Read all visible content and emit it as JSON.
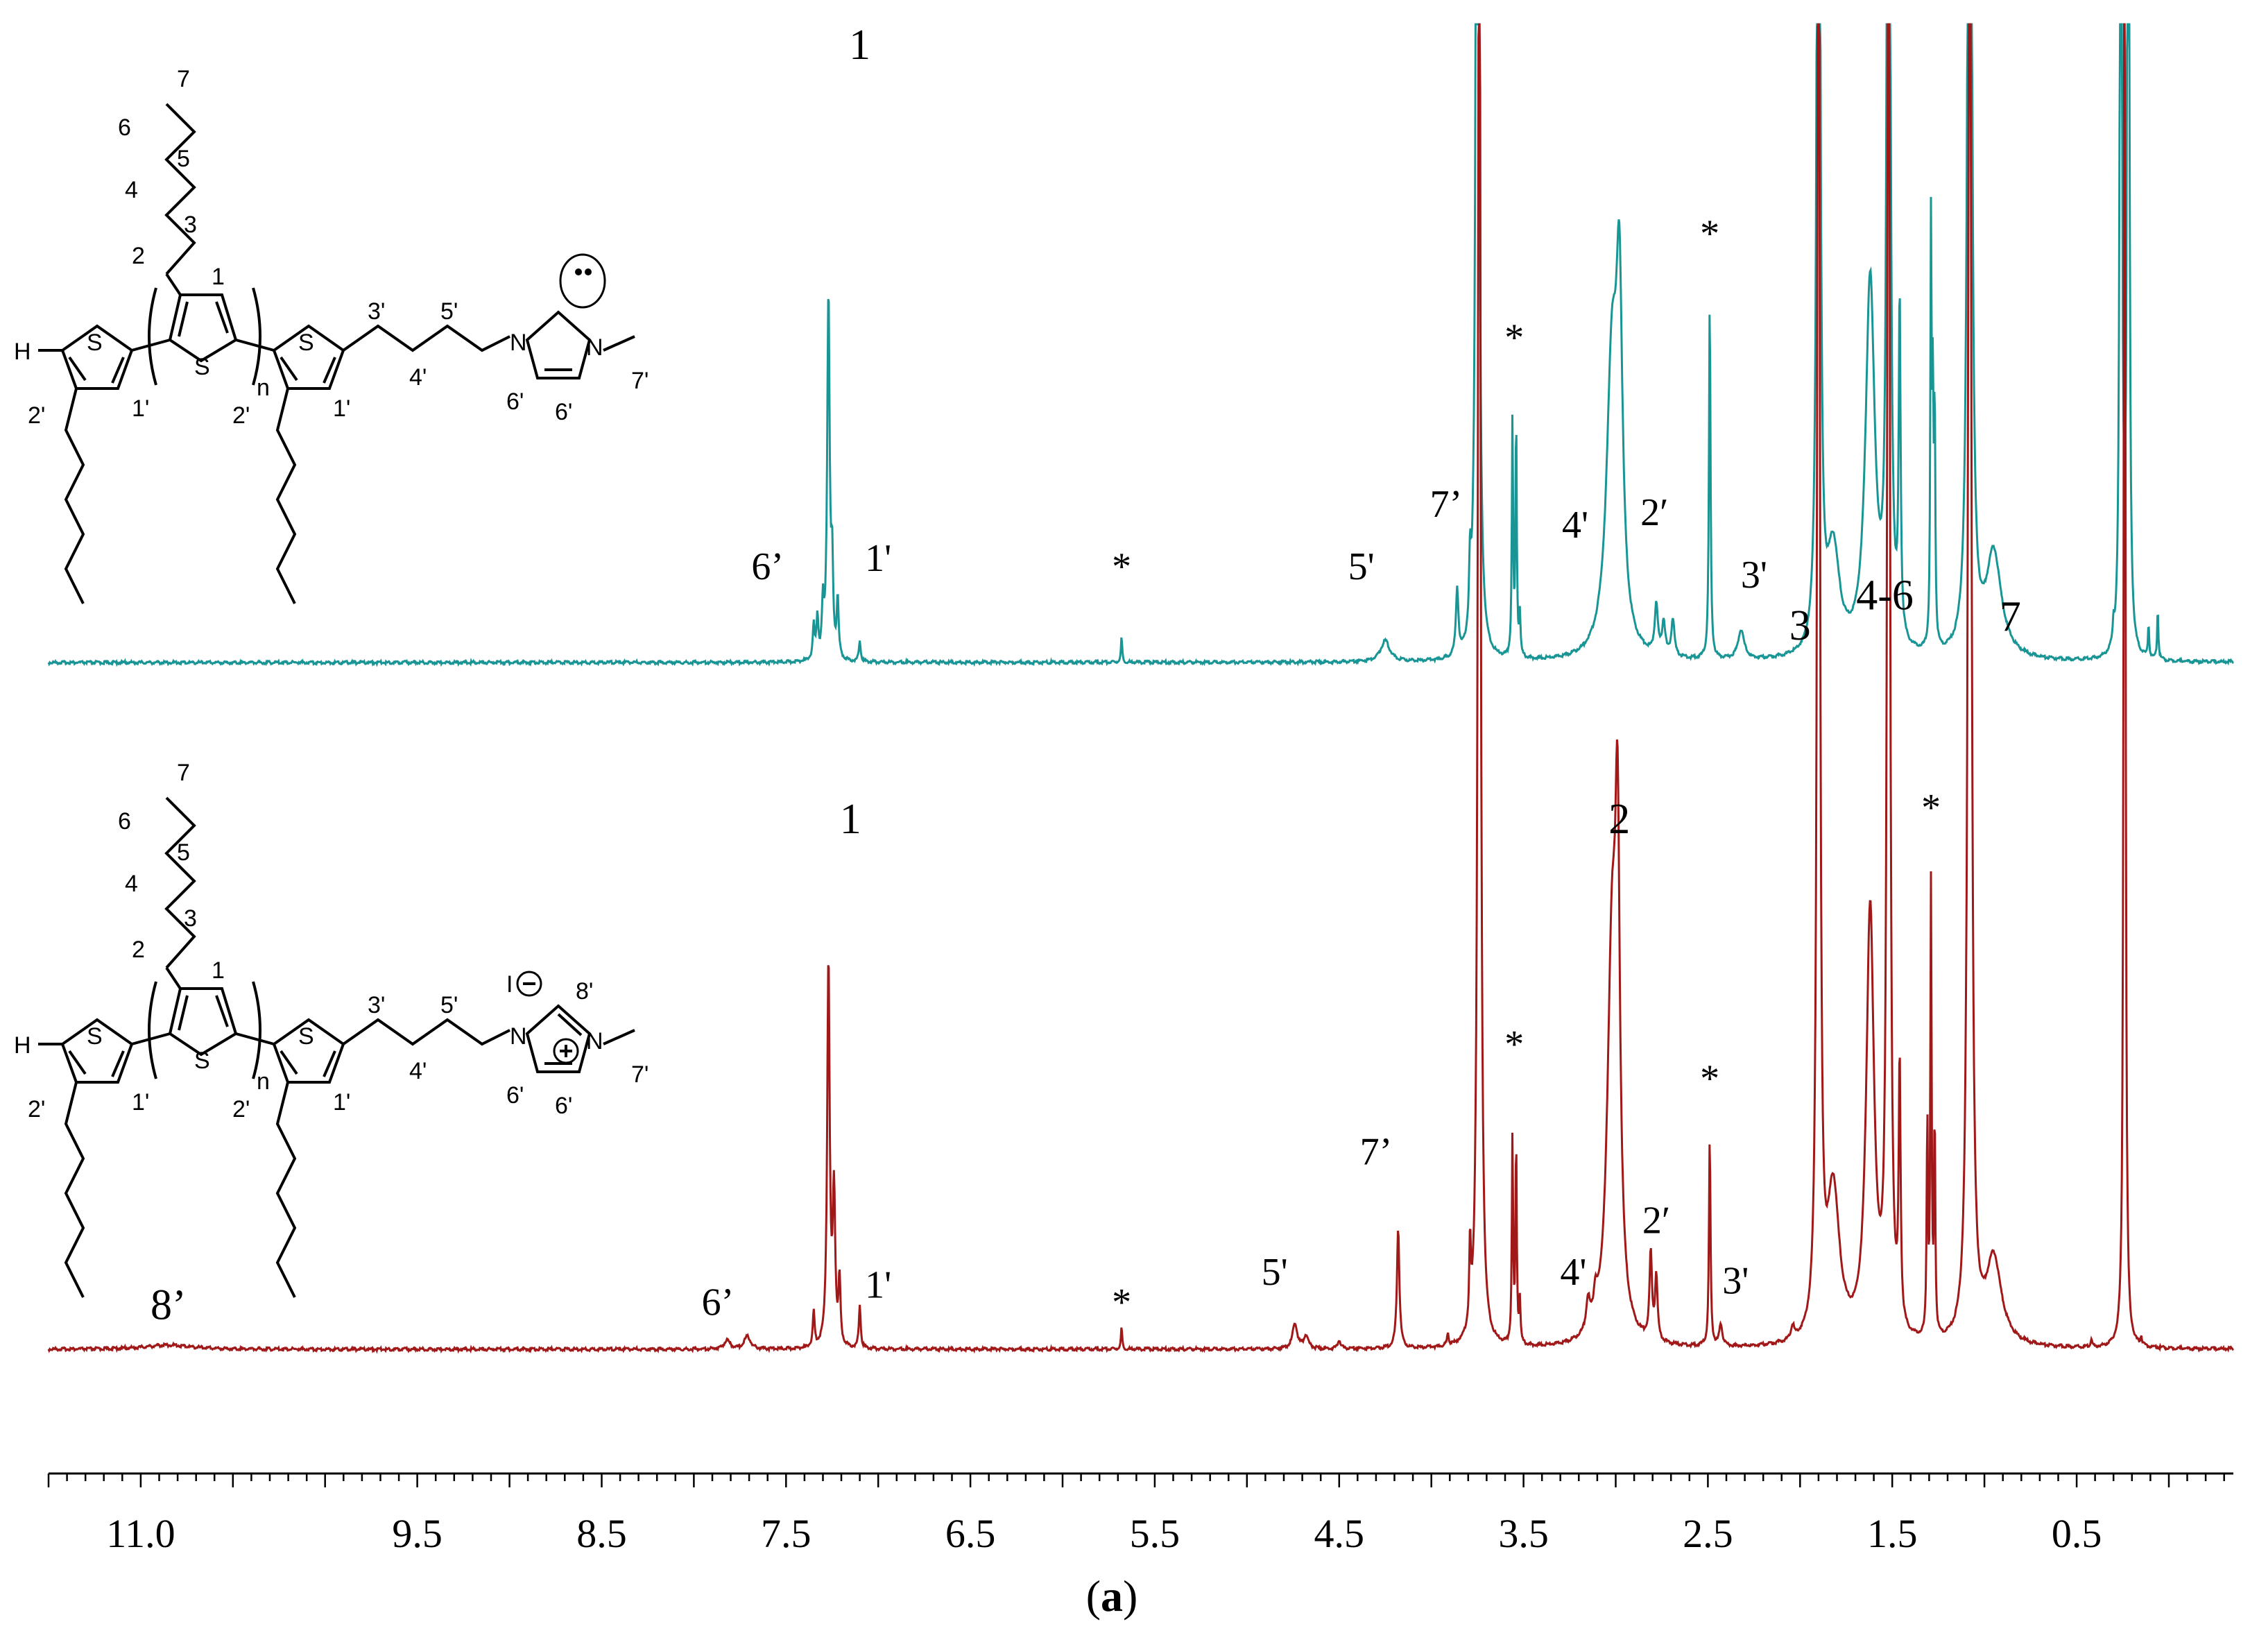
{
  "chart_data": {
    "type": "line",
    "xlim": [
      11.5,
      -0.35
    ],
    "x_reversed": true,
    "x_ticks": [
      "11.0",
      "9.5",
      "8.5",
      "7.5",
      "6.5",
      "5.5",
      "4.5",
      "3.5",
      "2.5",
      "1.5",
      "0.5"
    ],
    "x_tick_values": [
      11.0,
      9.5,
      8.5,
      7.5,
      6.5,
      5.5,
      4.5,
      3.5,
      2.5,
      1.5,
      0.5
    ],
    "caption": "(a)",
    "colors": {
      "top": "#1a9595",
      "bottom": "#a01818",
      "axis": "#000000"
    },
    "series": [
      {
        "key": "top",
        "peaks": [
          {
            "x": 7.35,
            "h": 0.08,
            "w": 0.006
          },
          {
            "x": 7.33,
            "h": 0.1,
            "w": 0.006
          },
          {
            "x": 7.3,
            "h": 0.12,
            "w": 0.006
          },
          {
            "x": 7.27,
            "h": 0.88,
            "w": 0.008
          },
          {
            "x": 7.25,
            "h": 0.2,
            "w": 0.006
          },
          {
            "x": 7.22,
            "h": 0.14,
            "w": 0.006
          },
          {
            "x": 7.1,
            "h": 0.05,
            "w": 0.006
          },
          {
            "x": 5.68,
            "h": 0.06,
            "w": 0.004
          },
          {
            "x": 4.25,
            "h": 0.05,
            "w": 0.03
          },
          {
            "x": 3.86,
            "h": 0.16,
            "w": 0.008
          },
          {
            "x": 3.79,
            "h": 0.16,
            "w": 0.006
          },
          {
            "x": 3.75,
            "h": 4.0,
            "w": 0.008
          },
          {
            "x": 3.56,
            "h": 0.57,
            "w": 0.004
          },
          {
            "x": 3.54,
            "h": 0.57,
            "w": 0.004
          },
          {
            "x": 3.52,
            "h": 0.1,
            "w": 0.004
          },
          {
            "x": 3.02,
            "h": 0.7,
            "w": 0.035
          },
          {
            "x": 2.98,
            "h": 0.75,
            "w": 0.02
          },
          {
            "x": 2.78,
            "h": 0.12,
            "w": 0.01
          },
          {
            "x": 2.74,
            "h": 0.08,
            "w": 0.01
          },
          {
            "x": 2.69,
            "h": 0.09,
            "w": 0.01
          },
          {
            "x": 2.49,
            "h": 0.85,
            "w": 0.005
          },
          {
            "x": 2.32,
            "h": 0.07,
            "w": 0.02
          },
          {
            "x": 1.9,
            "h": 4.0,
            "w": 0.008
          },
          {
            "x": 1.82,
            "h": 0.25,
            "w": 0.04
          },
          {
            "x": 1.62,
            "h": 0.9,
            "w": 0.03
          },
          {
            "x": 1.52,
            "h": 4.0,
            "w": 0.008
          },
          {
            "x": 1.46,
            "h": 0.8,
            "w": 0.006
          },
          {
            "x": 1.29,
            "h": 1.0,
            "w": 0.004
          },
          {
            "x": 1.28,
            "h": 0.55,
            "w": 0.004
          },
          {
            "x": 1.27,
            "h": 0.55,
            "w": 0.004
          },
          {
            "x": 1.08,
            "h": 4.0,
            "w": 0.01
          },
          {
            "x": 0.95,
            "h": 0.25,
            "w": 0.05
          },
          {
            "x": 0.3,
            "h": 0.05,
            "w": 0.004
          },
          {
            "x": 0.26,
            "h": 4.0,
            "w": 0.005
          },
          {
            "x": 0.22,
            "h": 4.0,
            "w": 0.005
          },
          {
            "x": 0.11,
            "h": 0.08,
            "w": 0.004
          },
          {
            "x": 0.06,
            "h": 0.12,
            "w": 0.004
          }
        ]
      },
      {
        "key": "bottom",
        "peaks": [
          {
            "x": 10.85,
            "h": 0.01,
            "w": 0.15
          },
          {
            "x": 7.82,
            "h": 0.02,
            "w": 0.02
          },
          {
            "x": 7.71,
            "h": 0.03,
            "w": 0.02
          },
          {
            "x": 7.35,
            "h": 0.08,
            "w": 0.006
          },
          {
            "x": 7.27,
            "h": 0.9,
            "w": 0.008
          },
          {
            "x": 7.24,
            "h": 0.35,
            "w": 0.008
          },
          {
            "x": 7.21,
            "h": 0.15,
            "w": 0.006
          },
          {
            "x": 7.1,
            "h": 0.1,
            "w": 0.006
          },
          {
            "x": 5.68,
            "h": 0.05,
            "w": 0.004
          },
          {
            "x": 4.74,
            "h": 0.06,
            "w": 0.015
          },
          {
            "x": 4.68,
            "h": 0.03,
            "w": 0.015
          },
          {
            "x": 4.5,
            "h": 0.02,
            "w": 0.01
          },
          {
            "x": 4.18,
            "h": 0.28,
            "w": 0.008
          },
          {
            "x": 3.91,
            "h": 0.03,
            "w": 0.005
          },
          {
            "x": 3.79,
            "h": 0.19,
            "w": 0.005
          },
          {
            "x": 3.74,
            "h": 4.0,
            "w": 0.008
          },
          {
            "x": 3.56,
            "h": 0.48,
            "w": 0.004
          },
          {
            "x": 3.54,
            "h": 0.47,
            "w": 0.004
          },
          {
            "x": 3.52,
            "h": 0.1,
            "w": 0.004
          },
          {
            "x": 3.15,
            "h": 0.07,
            "w": 0.012
          },
          {
            "x": 3.11,
            "h": 0.06,
            "w": 0.012
          },
          {
            "x": 3.02,
            "h": 0.9,
            "w": 0.03
          },
          {
            "x": 2.99,
            "h": 0.95,
            "w": 0.015
          },
          {
            "x": 2.81,
            "h": 0.2,
            "w": 0.008
          },
          {
            "x": 2.78,
            "h": 0.15,
            "w": 0.008
          },
          {
            "x": 2.49,
            "h": 0.48,
            "w": 0.005
          },
          {
            "x": 2.43,
            "h": 0.05,
            "w": 0.01
          },
          {
            "x": 2.04,
            "h": 0.03,
            "w": 0.01
          },
          {
            "x": 1.9,
            "h": 4.0,
            "w": 0.008
          },
          {
            "x": 1.82,
            "h": 0.35,
            "w": 0.04
          },
          {
            "x": 1.62,
            "h": 1.0,
            "w": 0.025
          },
          {
            "x": 1.52,
            "h": 4.0,
            "w": 0.008
          },
          {
            "x": 1.46,
            "h": 0.6,
            "w": 0.006
          },
          {
            "x": 1.31,
            "h": 0.5,
            "w": 0.004
          },
          {
            "x": 1.29,
            "h": 1.05,
            "w": 0.004
          },
          {
            "x": 1.27,
            "h": 0.5,
            "w": 0.004
          },
          {
            "x": 1.08,
            "h": 4.0,
            "w": 0.01
          },
          {
            "x": 0.95,
            "h": 0.2,
            "w": 0.05
          },
          {
            "x": 0.42,
            "h": 0.02,
            "w": 0.004
          },
          {
            "x": 0.24,
            "h": 4.0,
            "w": 0.005
          },
          {
            "x": 0.15,
            "h": 0.02,
            "w": 0.004
          }
        ]
      }
    ],
    "annotations": [
      {
        "series": "top",
        "text": "1",
        "x": 7.1,
        "y": 1.45,
        "size": 62
      },
      {
        "series": "top",
        "text": "6’",
        "x": 7.6,
        "y": 0.2,
        "size": 56
      },
      {
        "series": "top",
        "text": "1'",
        "x": 7.0,
        "y": 0.22,
        "size": 56
      },
      {
        "series": "top",
        "text": "*",
        "x": 5.68,
        "y": 0.2,
        "size": 56
      },
      {
        "series": "top",
        "text": "5'",
        "x": 4.38,
        "y": 0.2,
        "size": 56
      },
      {
        "series": "top",
        "text": "7’",
        "x": 3.92,
        "y": 0.35,
        "size": 56
      },
      {
        "series": "top",
        "text": "*",
        "x": 3.55,
        "y": 0.75,
        "size": 56
      },
      {
        "series": "top",
        "text": "4'",
        "x": 3.22,
        "y": 0.3,
        "size": 56
      },
      {
        "series": "top",
        "text": "2",
        "x": 2.98,
        "y": 1.85,
        "size": 62
      },
      {
        "series": "top",
        "text": "2′",
        "x": 2.79,
        "y": 0.33,
        "size": 56
      },
      {
        "series": "top",
        "text": "*",
        "x": 2.49,
        "y": 1.0,
        "size": 56
      },
      {
        "series": "top",
        "text": "3'",
        "x": 2.25,
        "y": 0.18,
        "size": 56
      },
      {
        "series": "top",
        "text": "3",
        "x": 2.05,
        "y": 1.65,
        "size": 62
      },
      {
        "series": "top",
        "text": "4-6",
        "x": 1.54,
        "y": 1.7,
        "size": 62
      },
      {
        "series": "top",
        "text": "*",
        "x": 1.29,
        "y": 1.85,
        "size": 56
      },
      {
        "series": "top",
        "text": "7",
        "x": 0.86,
        "y": 1.7,
        "size": 62
      },
      {
        "series": "bottom",
        "text": "8’",
        "x": 10.85,
        "y": 0.07,
        "size": 62
      },
      {
        "series": "bottom",
        "text": "6’",
        "x": 7.87,
        "y": 0.08,
        "size": 56
      },
      {
        "series": "bottom",
        "text": "1'",
        "x": 7.0,
        "y": 0.12,
        "size": 56
      },
      {
        "series": "bottom",
        "text": "1",
        "x": 7.15,
        "y": 1.2,
        "size": 62
      },
      {
        "series": "bottom",
        "text": "*",
        "x": 5.68,
        "y": 0.08,
        "size": 56
      },
      {
        "series": "bottom",
        "text": "5'",
        "x": 4.85,
        "y": 0.15,
        "size": 56
      },
      {
        "series": "bottom",
        "text": "7’",
        "x": 4.3,
        "y": 0.43,
        "size": 56
      },
      {
        "series": "bottom",
        "text": "*",
        "x": 3.55,
        "y": 0.68,
        "size": 56
      },
      {
        "series": "bottom",
        "text": "4'",
        "x": 3.23,
        "y": 0.15,
        "size": 56
      },
      {
        "series": "bottom",
        "text": "2",
        "x": 2.98,
        "y": 1.2,
        "size": 62
      },
      {
        "series": "bottom",
        "text": "2′",
        "x": 2.78,
        "y": 0.27,
        "size": 56
      },
      {
        "series": "bottom",
        "text": "*",
        "x": 2.49,
        "y": 0.6,
        "size": 56
      },
      {
        "series": "bottom",
        "text": "3'",
        "x": 2.35,
        "y": 0.13,
        "size": 56
      },
      {
        "series": "bottom",
        "text": "3",
        "x": 2.0,
        "y": 1.65,
        "size": 62
      },
      {
        "series": "bottom",
        "text": "4-6",
        "x": 1.54,
        "y": 1.72,
        "size": 62
      },
      {
        "series": "bottom",
        "text": "*",
        "x": 1.29,
        "y": 1.23,
        "size": 56
      },
      {
        "series": "bottom",
        "text": "7",
        "x": 0.86,
        "y": 1.67,
        "size": 62
      }
    ]
  },
  "structures": [
    {
      "key": "neutral-carbene",
      "atom_labels": {
        "h": "H",
        "s_left": "S",
        "s_mid": "S",
        "s_right": "S",
        "n_index": "n",
        "n1": "N",
        "n3": "N"
      },
      "carbon_labels": [
        "7",
        "6",
        "5",
        "4",
        "3",
        "2",
        "1",
        "1'",
        "2'",
        "1'",
        "2'",
        "3'",
        "4'",
        "5'",
        "6'",
        "6'",
        "7'"
      ]
    },
    {
      "key": "imidazolium-iodide",
      "atom_labels": {
        "h": "H",
        "s_left": "S",
        "s_mid": "S",
        "s_right": "S",
        "n_index": "n",
        "n1": "N",
        "n3": "N",
        "iodide": "I",
        "minus": "⊖",
        "plus": "⊕"
      },
      "carbon_labels": [
        "7",
        "6",
        "5",
        "4",
        "3",
        "2",
        "1",
        "1'",
        "2'",
        "1'",
        "2'",
        "3'",
        "4'",
        "5'",
        "8'",
        "6'",
        "6'",
        "7'"
      ]
    }
  ]
}
